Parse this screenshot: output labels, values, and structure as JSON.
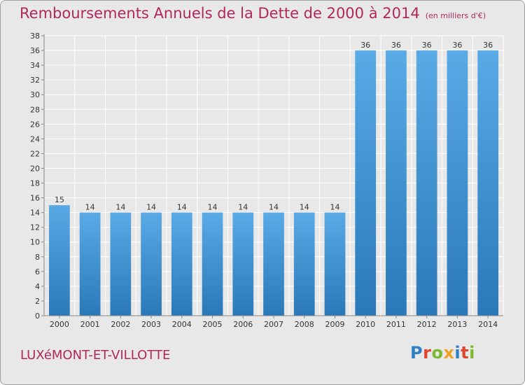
{
  "title": "Remboursements Annuels de la Dette de 2000 à 2014",
  "unit": "(en milliers d'€)",
  "commune": "LUXéMONT-ET-VILLOTTE",
  "logo": {
    "letters": [
      {
        "char": "P",
        "color": "#2f7fc4"
      },
      {
        "char": "r",
        "color": "#e0442c"
      },
      {
        "char": "o",
        "color": "#7cb82f"
      },
      {
        "char": "x",
        "color": "#f0a020"
      },
      {
        "char": "i",
        "color": "#2f7fc4"
      },
      {
        "char": "t",
        "color": "#e0442c"
      },
      {
        "char": "i",
        "color": "#7cb82f"
      }
    ]
  },
  "colors": {
    "bar_top": "#5aaae6",
    "bar_bottom": "#2a78b8",
    "title": "#b0285a",
    "background": "#e8e8e8"
  },
  "chart_data": {
    "type": "bar",
    "categories": [
      "2000",
      "2001",
      "2002",
      "2003",
      "2004",
      "2005",
      "2006",
      "2007",
      "2008",
      "2009",
      "2010",
      "2011",
      "2012",
      "2013",
      "2014"
    ],
    "values": [
      15,
      14,
      14,
      14,
      14,
      14,
      14,
      14,
      14,
      14,
      36,
      36,
      36,
      36,
      36
    ],
    "ylim": [
      0,
      38
    ],
    "yticks": [
      0,
      2,
      4,
      6,
      8,
      10,
      12,
      14,
      16,
      18,
      20,
      22,
      24,
      26,
      28,
      30,
      32,
      34,
      36,
      38
    ],
    "grid": true,
    "data_labels": true
  }
}
